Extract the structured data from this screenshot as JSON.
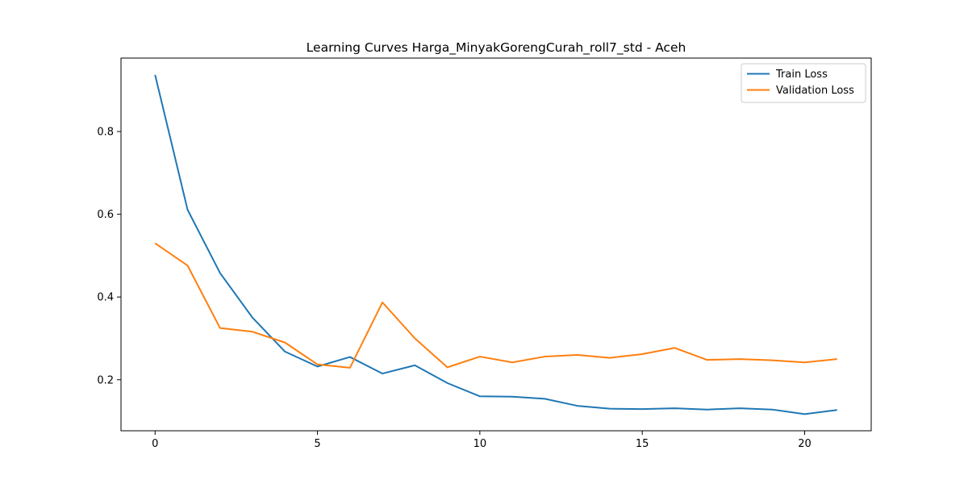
{
  "chart_data": {
    "type": "line",
    "title": "Learning Curves Harga_MinyakGorengCurah_roll7_std - Aceh",
    "xlabel": "",
    "ylabel": "",
    "x": [
      0,
      1,
      2,
      3,
      4,
      5,
      6,
      7,
      8,
      9,
      10,
      11,
      12,
      13,
      14,
      15,
      16,
      17,
      18,
      19,
      20,
      21
    ],
    "series": [
      {
        "name": "Train Loss",
        "color": "#1f77b4",
        "values": [
          0.937,
          0.611,
          0.458,
          0.35,
          0.268,
          0.232,
          0.255,
          0.215,
          0.235,
          0.192,
          0.16,
          0.159,
          0.154,
          0.137,
          0.13,
          0.129,
          0.131,
          0.128,
          0.131,
          0.128,
          0.117,
          0.127
        ]
      },
      {
        "name": "Validation Loss",
        "color": "#ff7f0e",
        "values": [
          0.53,
          0.476,
          0.325,
          0.316,
          0.29,
          0.237,
          0.229,
          0.387,
          0.3,
          0.23,
          0.256,
          0.242,
          0.256,
          0.26,
          0.253,
          0.262,
          0.277,
          0.248,
          0.25,
          0.247,
          0.242,
          0.25
        ]
      }
    ],
    "xlim": [
      -1.05,
      22.05
    ],
    "ylim": [
      0.0767,
      0.9776
    ],
    "xticks": [
      0,
      5,
      10,
      15,
      20
    ],
    "xtick_labels": [
      "0",
      "5",
      "10",
      "15",
      "20"
    ],
    "yticks": [
      0.2,
      0.4,
      0.6,
      0.8
    ],
    "ytick_labels": [
      "0.2",
      "0.4",
      "0.6",
      "0.8"
    ],
    "grid": false,
    "legend_position": "top-right"
  }
}
